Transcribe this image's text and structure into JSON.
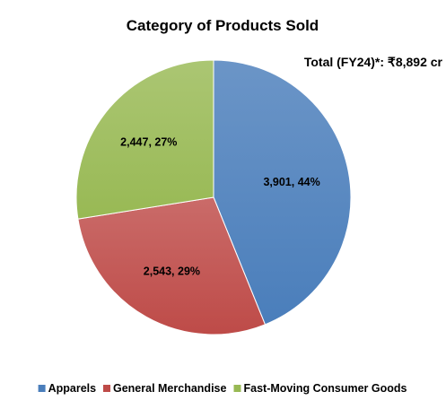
{
  "chart_data": {
    "type": "pie",
    "title": "Category of Products Sold",
    "annotation": "Total (FY24)*: ₹8,892 cr",
    "legend_position": "bottom",
    "slices": [
      {
        "name": "Apparels",
        "value": 3901,
        "percent": 44,
        "label": "3,901, 44%",
        "color": "#4a7ebb"
      },
      {
        "name": "General Merchandise",
        "value": 2543,
        "percent": 29,
        "label": "2,543, 29%",
        "color": "#be4b48"
      },
      {
        "name": "Fast-Moving Consumer Goods",
        "value": 2447,
        "percent": 27,
        "label": "2,447, 27%",
        "color": "#98b954"
      }
    ]
  }
}
